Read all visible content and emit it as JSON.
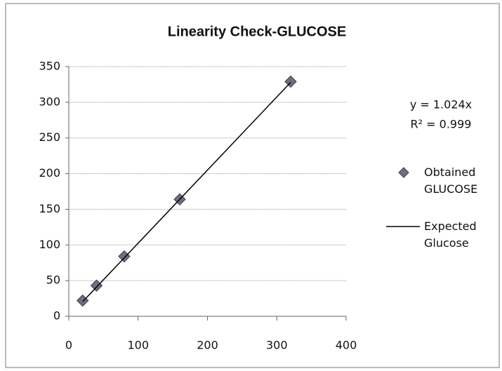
{
  "chart_data": {
    "type": "scatter",
    "title": "Linearity Check-GLUCOSE",
    "series": [
      {
        "name": "Obtained GLUCOSE",
        "color": "#6f6f80",
        "kind": "markers",
        "x": [
          20,
          40,
          80,
          160,
          320
        ],
        "values": [
          22,
          43,
          84,
          164,
          329
        ]
      },
      {
        "name": "Expected Glucose",
        "color": "#000000",
        "kind": "line",
        "x": [
          20,
          40,
          80,
          160,
          320
        ],
        "values": [
          20.5,
          41,
          82,
          164,
          328
        ]
      }
    ],
    "annotations": [
      "y = 1.024x",
      "R² = 0.999"
    ],
    "xlim": [
      0,
      400
    ],
    "xticks": [
      0,
      100,
      200,
      300,
      400
    ],
    "ylim": [
      0,
      350
    ],
    "yticks": [
      0,
      50,
      100,
      150,
      200,
      250,
      300,
      350
    ],
    "grid": true,
    "legend": "right"
  }
}
